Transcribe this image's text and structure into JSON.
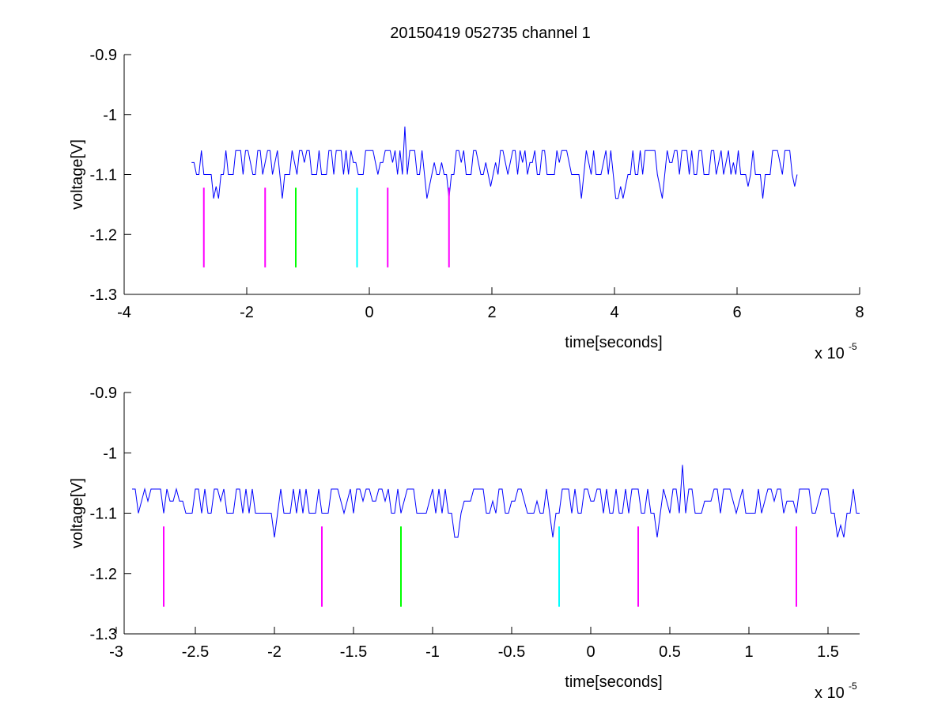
{
  "figure_title": "20150419 052735 channel 1",
  "colors": {
    "signal": "#0000ff",
    "marker_magenta": "#ff00ff",
    "marker_green": "#00ff00",
    "marker_cyan": "#00ffff",
    "axes": "#000000",
    "background": "#ffffff"
  },
  "chart_data": [
    {
      "type": "line",
      "title": "20150419 052735 channel 1",
      "xlabel": "time[seconds]",
      "ylabel": "voltage[V]",
      "x_exponent_label": "x 10",
      "x_exponent": "-5",
      "xlim": [
        -4,
        8
      ],
      "ylim": [
        -1.3,
        -0.9
      ],
      "xticks": [
        -4,
        -2,
        0,
        2,
        4,
        6,
        8
      ],
      "xtick_labels": [
        "-4",
        "-2",
        "0",
        "2",
        "4",
        "6",
        "8"
      ],
      "yticks": [
        -1.3,
        -1.2,
        -1.1,
        -1,
        -0.9
      ],
      "ytick_labels": [
        "-1.3",
        "-1.2",
        "-1.1",
        "-1",
        "-0.9"
      ],
      "grid": false,
      "signal": {
        "x_range": [
          -2.9,
          7.0
        ],
        "baseline": -1.1,
        "levels": [
          -1.14,
          -1.12,
          -1.1,
          -1.08,
          -1.06
        ],
        "spike": {
          "x": 0.58,
          "y": -1.02
        }
      },
      "markers": [
        {
          "x": -2.7,
          "color": "magenta",
          "y_range": [
            -1.255,
            -1.122
          ]
        },
        {
          "x": -1.7,
          "color": "magenta",
          "y_range": [
            -1.255,
            -1.122
          ]
        },
        {
          "x": -1.2,
          "color": "green",
          "y_range": [
            -1.255,
            -1.122
          ]
        },
        {
          "x": -0.2,
          "color": "cyan",
          "y_range": [
            -1.255,
            -1.122
          ]
        },
        {
          "x": 0.3,
          "color": "magenta",
          "y_range": [
            -1.255,
            -1.122
          ]
        },
        {
          "x": 1.3,
          "color": "magenta",
          "y_range": [
            -1.255,
            -1.122
          ]
        }
      ]
    },
    {
      "type": "line",
      "title": "",
      "xlabel": "time[seconds]",
      "ylabel": "voltage[V]",
      "x_exponent_label": "x 10",
      "x_exponent": "-5",
      "xlim": [
        -2.95,
        1.7
      ],
      "ylim": [
        -1.3,
        -0.9
      ],
      "xticks": [
        -3,
        -2.5,
        -2,
        -1.5,
        -1,
        -0.5,
        0,
        0.5,
        1,
        1.5
      ],
      "xtick_labels": [
        "-3",
        "-2.5",
        "-2",
        "-1.5",
        "-1",
        "-0.5",
        "0",
        "0.5",
        "1",
        "1.5"
      ],
      "yticks": [
        -1.3,
        -1.2,
        -1.1,
        -1,
        -0.9
      ],
      "ytick_labels": [
        "-1.3",
        "-1.2",
        "-1.1",
        "-1",
        "-0.9"
      ],
      "grid": false,
      "signal": {
        "x_range": [
          -2.9,
          1.7
        ],
        "baseline": -1.1,
        "levels": [
          -1.14,
          -1.12,
          -1.1,
          -1.08,
          -1.06
        ],
        "spike": {
          "x": 0.58,
          "y": -1.02
        }
      },
      "markers": [
        {
          "x": -2.7,
          "color": "magenta",
          "y_range": [
            -1.255,
            -1.122
          ]
        },
        {
          "x": -1.7,
          "color": "magenta",
          "y_range": [
            -1.255,
            -1.122
          ]
        },
        {
          "x": -1.2,
          "color": "green",
          "y_range": [
            -1.255,
            -1.122
          ]
        },
        {
          "x": -0.2,
          "color": "cyan",
          "y_range": [
            -1.255,
            -1.122
          ]
        },
        {
          "x": 0.3,
          "color": "magenta",
          "y_range": [
            -1.255,
            -1.122
          ]
        },
        {
          "x": 1.3,
          "color": "magenta",
          "y_range": [
            -1.255,
            -1.122
          ]
        }
      ]
    }
  ]
}
